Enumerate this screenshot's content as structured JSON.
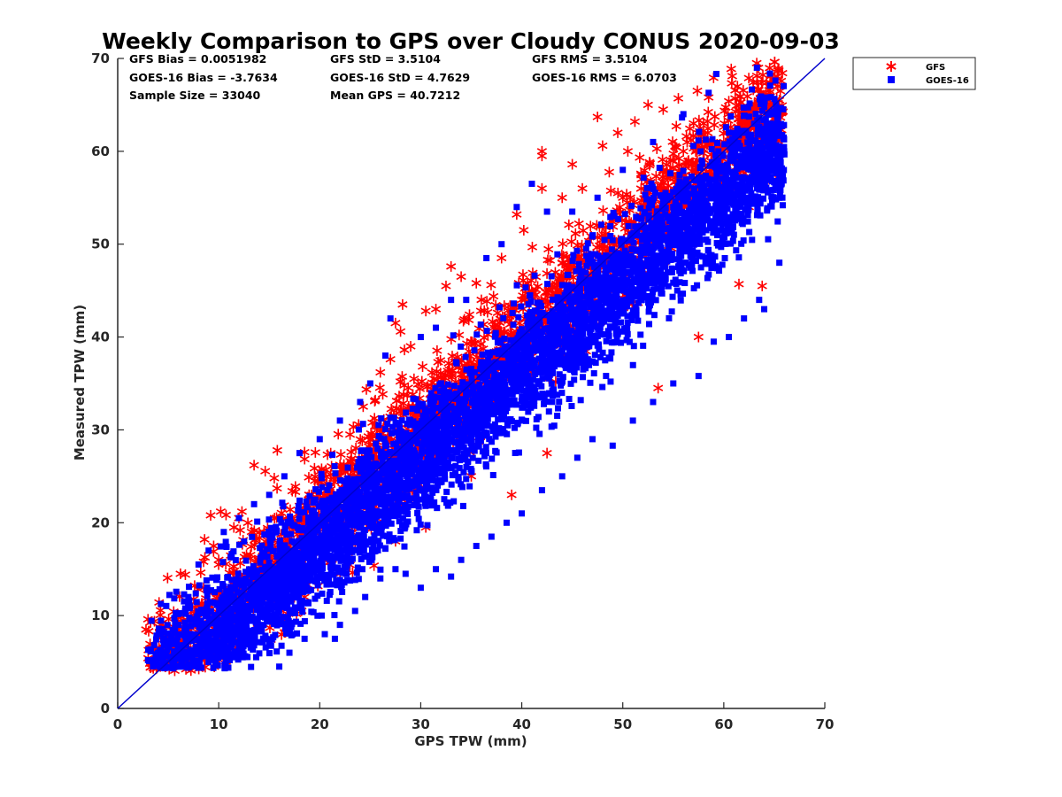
{
  "chart_data": {
    "type": "scatter",
    "title": "Weekly Comparison to GPS over Cloudy CONUS 2020-09-03",
    "xlabel": "GPS TPW (mm)",
    "ylabel": "Measured TPW (mm)",
    "xlim": [
      0,
      70
    ],
    "ylim": [
      0,
      70
    ],
    "xticks": [
      "0",
      "10",
      "20",
      "30",
      "40",
      "50",
      "60",
      "70"
    ],
    "yticks": [
      "0",
      "10",
      "20",
      "30",
      "40",
      "50",
      "60",
      "70"
    ],
    "grid": false,
    "legend_position": "outside-top-right",
    "stats": [
      [
        "GFS Bias = 0.0051982",
        "GFS StD = 3.5104",
        "GFS RMS = 3.5104"
      ],
      [
        "GOES-16 Bias = -3.7634",
        "GOES-16 StD = 4.7629",
        "GOES-16 RMS = 6.0703"
      ],
      [
        "Sample Size = 33040",
        "Mean GPS = 40.7212",
        ""
      ]
    ],
    "reference_line": {
      "from": [
        0,
        0
      ],
      "to": [
        70,
        70
      ],
      "color": "#0000cc"
    },
    "series": [
      {
        "name": "GFS",
        "marker": "asterisk",
        "color": "#ff0000",
        "sample_points": [
          [
            3,
            9.6
          ],
          [
            2.8,
            8.5
          ],
          [
            4.5,
            8.3
          ],
          [
            5.5,
            8.8
          ],
          [
            6.5,
            9.5
          ],
          [
            7.2,
            11.2
          ],
          [
            8.5,
            13
          ],
          [
            8.5,
            15.8
          ],
          [
            8.6,
            18.2
          ],
          [
            9.2,
            20.8
          ],
          [
            10.2,
            21.2
          ],
          [
            9.5,
            17.5
          ],
          [
            10,
            16
          ],
          [
            11.5,
            19.5
          ],
          [
            12,
            20.5
          ],
          [
            12.3,
            21.2
          ],
          [
            13.5,
            26.2
          ],
          [
            15.5,
            24.8
          ],
          [
            15.8,
            27.8
          ],
          [
            18.5,
            27.6
          ],
          [
            20,
            25.5
          ],
          [
            23,
            29.5
          ],
          [
            24.3,
            32.5
          ],
          [
            25.5,
            33.2
          ],
          [
            26,
            36.2
          ],
          [
            27,
            37.6
          ],
          [
            27.5,
            41.5
          ],
          [
            28,
            40.6
          ],
          [
            28.2,
            43.5
          ],
          [
            29,
            39
          ],
          [
            30.5,
            42.8
          ],
          [
            31.5,
            43
          ],
          [
            32.5,
            45.5
          ],
          [
            33,
            47.6
          ],
          [
            34,
            46.5
          ],
          [
            35.5,
            45.8
          ],
          [
            36,
            44
          ],
          [
            38,
            48.5
          ],
          [
            39.5,
            53.2
          ],
          [
            40.2,
            51.5
          ],
          [
            42,
            59.5
          ],
          [
            42,
            60
          ],
          [
            42,
            56
          ],
          [
            44,
            55
          ],
          [
            45,
            58.6
          ],
          [
            46,
            56
          ],
          [
            47.5,
            63.7
          ],
          [
            48,
            60.6
          ],
          [
            49.5,
            62
          ],
          [
            50.5,
            60
          ],
          [
            51.2,
            63.2
          ],
          [
            52.5,
            65
          ],
          [
            54,
            64.5
          ],
          [
            55.5,
            65.7
          ],
          [
            57,
            63
          ],
          [
            58.5,
            65.8
          ],
          [
            60,
            60.5
          ],
          [
            61.5,
            65
          ],
          [
            62.5,
            64.5
          ],
          [
            63.5,
            63
          ],
          [
            64.5,
            57
          ],
          [
            65,
            62
          ],
          [
            65.5,
            61.5
          ],
          [
            65.5,
            65.5
          ],
          [
            65.5,
            57
          ],
          [
            62.5,
            54
          ],
          [
            61.5,
            45.7
          ],
          [
            63.8,
            45.5
          ],
          [
            57.5,
            40
          ],
          [
            53.5,
            34.5
          ],
          [
            42.5,
            27.5
          ],
          [
            39,
            23
          ],
          [
            35,
            25
          ],
          [
            30.5,
            19.5
          ],
          [
            27.5,
            18
          ],
          [
            22,
            14.5
          ],
          [
            18.5,
            12
          ],
          [
            16.5,
            8.2
          ],
          [
            11.5,
            10
          ],
          [
            8,
            7.5
          ],
          [
            5.5,
            6
          ],
          [
            33,
            36
          ],
          [
            36,
            38
          ],
          [
            40,
            44
          ],
          [
            44,
            48
          ],
          [
            48,
            52
          ],
          [
            50,
            55
          ],
          [
            54,
            58
          ],
          [
            56,
            60
          ],
          [
            58,
            63
          ],
          [
            46,
            46
          ],
          [
            38,
            39
          ],
          [
            30,
            31
          ],
          [
            26,
            27
          ],
          [
            20,
            22
          ],
          [
            16,
            18
          ],
          [
            14,
            16
          ],
          [
            10,
            12
          ],
          [
            22,
            25
          ],
          [
            34,
            36
          ],
          [
            48,
            50
          ],
          [
            52,
            53
          ],
          [
            60,
            61
          ],
          [
            62,
            58
          ]
        ]
      },
      {
        "name": "GOES-16",
        "marker": "square",
        "color": "#0000ff",
        "sample_points": [
          [
            3,
            5.2
          ],
          [
            4.5,
            5.2
          ],
          [
            5.5,
            4.8
          ],
          [
            7,
            4.8
          ],
          [
            8,
            4.5
          ],
          [
            9,
            5
          ],
          [
            10,
            5.6
          ],
          [
            12,
            6.5
          ],
          [
            13.5,
            6.8
          ],
          [
            15,
            7
          ],
          [
            17,
            6
          ],
          [
            18.5,
            7.5
          ],
          [
            20.5,
            8
          ],
          [
            21.5,
            7.5
          ],
          [
            22,
            9
          ],
          [
            23.5,
            10.5
          ],
          [
            24.5,
            12
          ],
          [
            26,
            14
          ],
          [
            27.5,
            15
          ],
          [
            28.5,
            14.5
          ],
          [
            30,
            13
          ],
          [
            31.5,
            15
          ],
          [
            33,
            14.2
          ],
          [
            34,
            16
          ],
          [
            35.5,
            17.5
          ],
          [
            37,
            18.5
          ],
          [
            38.5,
            20
          ],
          [
            40,
            21
          ],
          [
            42,
            23.5
          ],
          [
            44,
            25
          ],
          [
            45.5,
            27
          ],
          [
            47,
            29
          ],
          [
            49,
            28.3
          ],
          [
            51,
            31
          ],
          [
            53,
            33
          ],
          [
            55,
            35
          ],
          [
            57.5,
            35.8
          ],
          [
            59,
            39.5
          ],
          [
            60.5,
            40
          ],
          [
            62,
            42
          ],
          [
            63.5,
            44
          ],
          [
            64,
            43
          ],
          [
            65.5,
            48
          ],
          [
            65.5,
            55
          ],
          [
            65,
            59
          ],
          [
            63,
            60
          ],
          [
            60.5,
            62
          ],
          [
            58.5,
            66.3
          ],
          [
            56,
            64
          ],
          [
            53,
            61
          ],
          [
            50,
            58
          ],
          [
            47.5,
            55
          ],
          [
            45,
            53.5
          ],
          [
            42.5,
            53.5
          ],
          [
            41,
            56.5
          ],
          [
            39.5,
            54
          ],
          [
            38,
            50
          ],
          [
            36.5,
            48.5
          ],
          [
            34.5,
            44
          ],
          [
            33,
            44
          ],
          [
            31.5,
            41
          ],
          [
            30,
            40
          ],
          [
            27,
            42
          ],
          [
            26.5,
            38
          ],
          [
            25,
            35
          ],
          [
            24,
            33
          ],
          [
            22,
            31
          ],
          [
            20,
            29
          ],
          [
            18,
            27.5
          ],
          [
            16.5,
            25
          ],
          [
            15,
            23
          ],
          [
            13.5,
            22
          ],
          [
            12,
            20.5
          ],
          [
            10.5,
            19
          ],
          [
            9,
            17
          ],
          [
            8,
            15.5
          ],
          [
            7,
            12
          ],
          [
            6,
            9
          ],
          [
            5,
            7
          ],
          [
            4,
            6
          ]
        ]
      }
    ]
  }
}
